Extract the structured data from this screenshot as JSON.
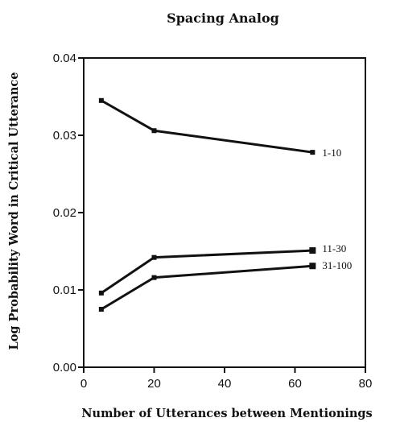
{
  "chart_data": {
    "type": "line",
    "title": "Spacing Analog",
    "xlabel": "Number of Utterances between Mentionings",
    "ylabel": "Log Probability Word in Critical Utterance",
    "xlim": [
      0,
      80
    ],
    "ylim": [
      0.0,
      0.04
    ],
    "xticks": [
      "0",
      "20",
      "40",
      "60",
      "80"
    ],
    "yticks": [
      "0.00",
      "0.01",
      "0.02",
      "0.03",
      "0.04"
    ],
    "x": [
      5,
      20,
      65
    ],
    "series": [
      {
        "name": "1-10",
        "values": [
          0.0345,
          0.0306,
          0.0278
        ]
      },
      {
        "name": "11-30",
        "values": [
          0.0096,
          0.0142,
          0.0151
        ]
      },
      {
        "name": "31-100",
        "values": [
          0.0075,
          0.0116,
          0.0131
        ]
      }
    ],
    "grid": false,
    "legend": "inline labels at right end of lines"
  }
}
